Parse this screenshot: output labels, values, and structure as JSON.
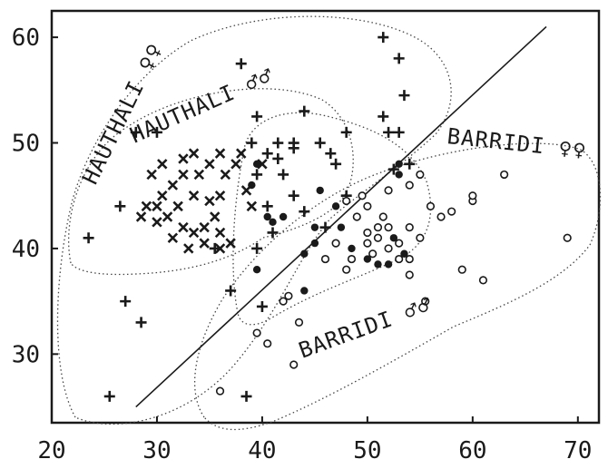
{
  "chart_data": {
    "type": "scatter",
    "title": "",
    "xlabel": "",
    "ylabel": "",
    "xlim": [
      20,
      72
    ],
    "ylim": [
      23.5,
      62.5
    ],
    "xticks": [
      20,
      30,
      40,
      50,
      60,
      70
    ],
    "yticks": [
      30,
      40,
      50,
      60
    ],
    "grid": false,
    "groups": [
      {
        "label": "HAUTHALI ♀♀",
        "marker": "plus"
      },
      {
        "label": "HAUTHALI ♂♂",
        "marker": "x"
      },
      {
        "label": "BARRIDI ♀♀",
        "marker": "filled-circle"
      },
      {
        "label": "BARRIDI ♂♂",
        "marker": "open-circle"
      }
    ],
    "series": [
      {
        "marker": "plus",
        "points": [
          [
            25.5,
            26
          ],
          [
            23.5,
            41
          ],
          [
            26.5,
            44
          ],
          [
            27,
            35
          ],
          [
            28.5,
            33
          ],
          [
            28,
            51
          ],
          [
            30,
            51
          ],
          [
            38.5,
            26
          ],
          [
            37,
            36
          ],
          [
            35.5,
            40
          ],
          [
            38,
            57.5
          ],
          [
            39.5,
            52.5
          ],
          [
            39,
            50
          ],
          [
            40.5,
            49
          ],
          [
            39.5,
            47
          ],
          [
            41.5,
            48.5
          ],
          [
            43,
            49.5
          ],
          [
            44,
            53
          ],
          [
            43,
            50
          ],
          [
            41.5,
            50
          ],
          [
            45.5,
            50
          ],
          [
            46.5,
            49
          ],
          [
            47,
            48
          ],
          [
            48,
            51
          ],
          [
            51.5,
            60
          ],
          [
            53,
            58
          ],
          [
            53.5,
            54.5
          ],
          [
            51.5,
            52.5
          ],
          [
            52,
            51
          ],
          [
            53,
            51
          ],
          [
            42,
            47
          ],
          [
            40.5,
            44
          ],
          [
            41,
            41.5
          ],
          [
            39.5,
            40
          ],
          [
            40,
            34.5
          ],
          [
            43,
            45
          ],
          [
            44,
            43.5
          ],
          [
            46,
            42
          ],
          [
            48,
            45
          ],
          [
            54,
            48
          ],
          [
            52.5,
            47.5
          ]
        ]
      },
      {
        "marker": "x",
        "points": [
          [
            29.5,
            47
          ],
          [
            30.5,
            48
          ],
          [
            31.5,
            46
          ],
          [
            32.5,
            47
          ],
          [
            33.5,
            49
          ],
          [
            29,
            44
          ],
          [
            30,
            42.5
          ],
          [
            31,
            43
          ],
          [
            32.5,
            42
          ],
          [
            33.5,
            41.5
          ],
          [
            34.5,
            42
          ],
          [
            35,
            44.5
          ],
          [
            33.5,
            45
          ],
          [
            32,
            44
          ],
          [
            30.5,
            45
          ],
          [
            28.5,
            43
          ],
          [
            30,
            44
          ],
          [
            31.5,
            41
          ],
          [
            33,
            40
          ],
          [
            34.5,
            40.5
          ],
          [
            36,
            40
          ],
          [
            35.5,
            43
          ],
          [
            36,
            41.5
          ],
          [
            37,
            40.5
          ],
          [
            36,
            45
          ],
          [
            36.5,
            47
          ],
          [
            37.5,
            48
          ],
          [
            38,
            49
          ],
          [
            38.5,
            45.5
          ],
          [
            39,
            44
          ],
          [
            40,
            48
          ],
          [
            36,
            49
          ],
          [
            35,
            48
          ],
          [
            34,
            47
          ],
          [
            32.5,
            48.5
          ]
        ]
      },
      {
        "marker": "filled-circle",
        "points": [
          [
            39.5,
            38
          ],
          [
            40.5,
            43
          ],
          [
            41,
            42.5
          ],
          [
            42,
            43
          ],
          [
            39,
            46
          ],
          [
            39.5,
            48
          ],
          [
            44,
            36
          ],
          [
            45,
            42
          ],
          [
            45.5,
            45.5
          ],
          [
            45,
            40.5
          ],
          [
            47.5,
            42
          ],
          [
            48.5,
            40
          ],
          [
            50,
            39
          ],
          [
            51,
            38.5
          ],
          [
            52,
            38.5
          ],
          [
            53.5,
            39.5
          ],
          [
            52.5,
            41
          ],
          [
            53,
            47
          ],
          [
            53,
            48
          ],
          [
            44,
            39.5
          ],
          [
            47,
            44
          ]
        ]
      },
      {
        "marker": "open-circle",
        "points": [
          [
            36,
            26.5
          ],
          [
            39.5,
            32
          ],
          [
            40.5,
            31
          ],
          [
            42,
            35
          ],
          [
            42.5,
            35.5
          ],
          [
            43.5,
            33
          ],
          [
            43,
            29
          ],
          [
            46,
            39
          ],
          [
            47,
            40.5
          ],
          [
            48,
            38
          ],
          [
            48.5,
            39
          ],
          [
            50,
            40.5
          ],
          [
            50.5,
            39.5
          ],
          [
            51,
            41
          ],
          [
            52,
            40
          ],
          [
            53,
            40.5
          ],
          [
            54,
            39
          ],
          [
            54,
            42
          ],
          [
            55,
            41
          ],
          [
            52,
            42
          ],
          [
            51.5,
            43
          ],
          [
            49,
            43
          ],
          [
            50,
            44
          ],
          [
            48,
            44.5
          ],
          [
            49.5,
            45
          ],
          [
            52,
            45.5
          ],
          [
            54,
            46
          ],
          [
            55,
            47
          ],
          [
            56,
            44
          ],
          [
            57,
            43
          ],
          [
            58,
            43.5
          ],
          [
            60,
            44.5
          ],
          [
            60,
            45
          ],
          [
            59,
            38
          ],
          [
            61,
            37
          ],
          [
            63,
            47
          ],
          [
            69,
            41
          ],
          [
            55.5,
            35
          ],
          [
            54,
            37.5
          ],
          [
            53,
            39
          ],
          [
            51,
            42
          ],
          [
            50,
            41.5
          ]
        ]
      }
    ],
    "trend_line": {
      "from": [
        28,
        25
      ],
      "to": [
        67,
        61
      ]
    }
  }
}
